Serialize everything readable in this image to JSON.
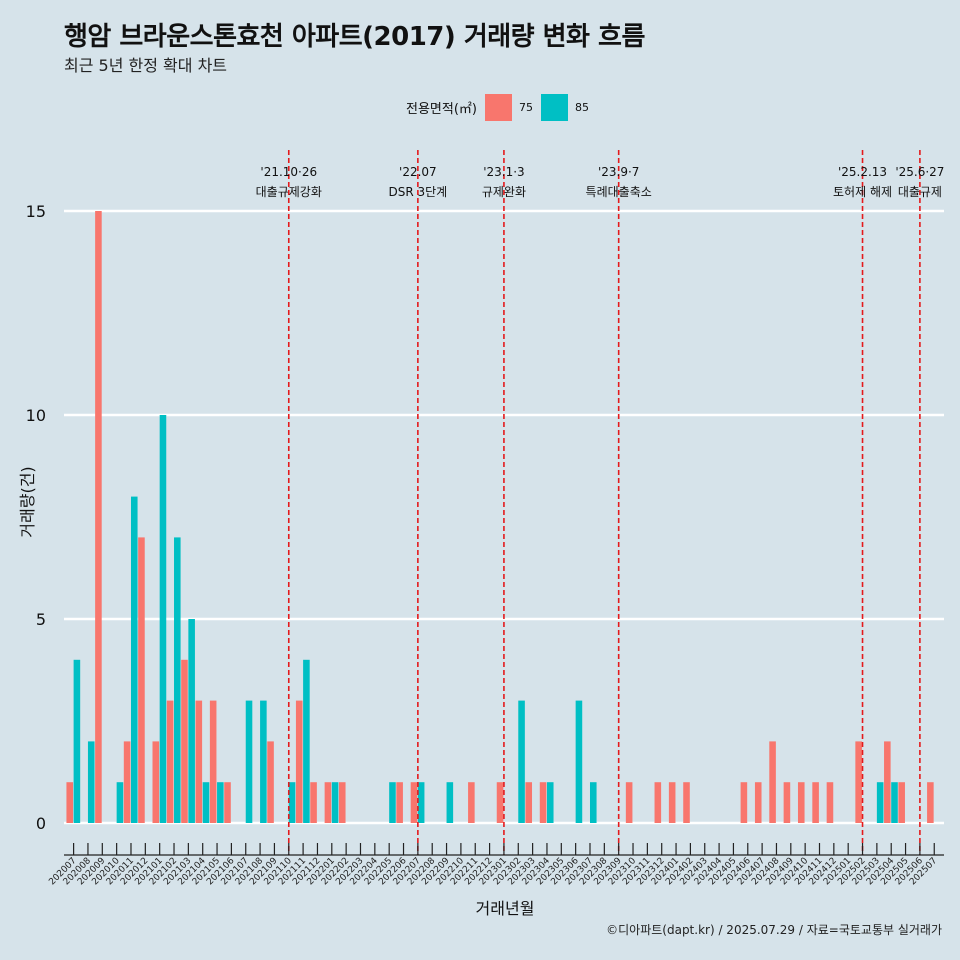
{
  "header": {
    "title": "행암 브라운스톤효천 아파트(2017) 거래량 변화 흐름",
    "subtitle": "최근 5년 한정 확대 차트"
  },
  "legend": {
    "title": "전용면적(㎡)",
    "items": [
      {
        "label": "75",
        "color": "#f8766d"
      },
      {
        "label": "85",
        "color": "#00bfc4"
      }
    ]
  },
  "caption": "©디아파트(dapt.kr) / 2025.07.29 / 자료=국토교통부 실거래가",
  "chart_data": {
    "type": "bar",
    "title": "행암 브라운스톤효천 아파트(2017) 거래량 변화 흐름",
    "subtitle": "최근 5년 한정 확대 차트",
    "xlabel": "거래년월",
    "ylabel": "거래량(건)",
    "ylim": [
      -0.6,
      16.5
    ],
    "yticks": [
      0,
      5,
      10,
      15
    ],
    "grid": "horizontal",
    "legend_position": "top",
    "categories": [
      "202007",
      "202008",
      "202009",
      "202010",
      "202011",
      "202012",
      "202101",
      "202102",
      "202103",
      "202104",
      "202105",
      "202106",
      "202107",
      "202108",
      "202109",
      "202110",
      "202111",
      "202112",
      "202201",
      "202202",
      "202203",
      "202204",
      "202205",
      "202206",
      "202207",
      "202208",
      "202209",
      "202210",
      "202211",
      "202212",
      "202301",
      "202302",
      "202303",
      "202304",
      "202305",
      "202306",
      "202307",
      "202308",
      "202309",
      "202310",
      "202311",
      "202312",
      "202401",
      "202402",
      "202403",
      "202404",
      "202405",
      "202406",
      "202407",
      "202408",
      "202409",
      "202410",
      "202411",
      "202412",
      "202501",
      "202502",
      "202503",
      "202504",
      "202505",
      "202506",
      "202507"
    ],
    "series": [
      {
        "name": "75",
        "color": "#f8766d",
        "values": [
          1,
          0,
          15,
          0,
          2,
          7,
          2,
          3,
          4,
          3,
          3,
          1,
          0,
          0,
          2,
          0,
          3,
          1,
          1,
          1,
          0,
          0,
          0,
          1,
          1,
          0,
          0,
          0,
          1,
          0,
          1,
          0,
          1,
          1,
          0,
          0,
          0,
          0,
          0,
          1,
          0,
          1,
          1,
          1,
          0,
          0,
          0,
          1,
          1,
          2,
          1,
          1,
          1,
          1,
          0,
          2,
          0,
          2,
          1,
          0,
          1
        ]
      },
      {
        "name": "85",
        "color": "#00bfc4",
        "values": [
          4,
          2,
          0,
          1,
          8,
          0,
          10,
          7,
          5,
          1,
          1,
          0,
          3,
          3,
          0,
          1,
          4,
          0,
          1,
          0,
          0,
          0,
          1,
          0,
          1,
          0,
          1,
          0,
          0,
          0,
          0,
          3,
          0,
          1,
          0,
          3,
          1,
          0,
          0,
          0,
          0,
          0,
          0,
          0,
          0,
          0,
          0,
          0,
          0,
          0,
          0,
          0,
          0,
          0,
          0,
          0,
          1,
          1,
          0,
          0,
          0
        ]
      }
    ],
    "annotations": [
      {
        "line1": "'21.10·26",
        "line2": "대출규제강화",
        "month": "202110"
      },
      {
        "line1": "'22.07",
        "line2": "DSR 3단계",
        "month": "202207"
      },
      {
        "line1": "'23.1·3",
        "line2": "규제완화",
        "month": "202301"
      },
      {
        "line1": "'23.9·7",
        "line2": "특례대출축소",
        "month": "202309"
      },
      {
        "line1": "'25.2.13",
        "line2": "토허제 해제",
        "month": "202502"
      },
      {
        "line1": "'25.6·27",
        "line2": "대출규제",
        "month": "202506"
      }
    ],
    "annotation_color": "#e41a1c"
  }
}
